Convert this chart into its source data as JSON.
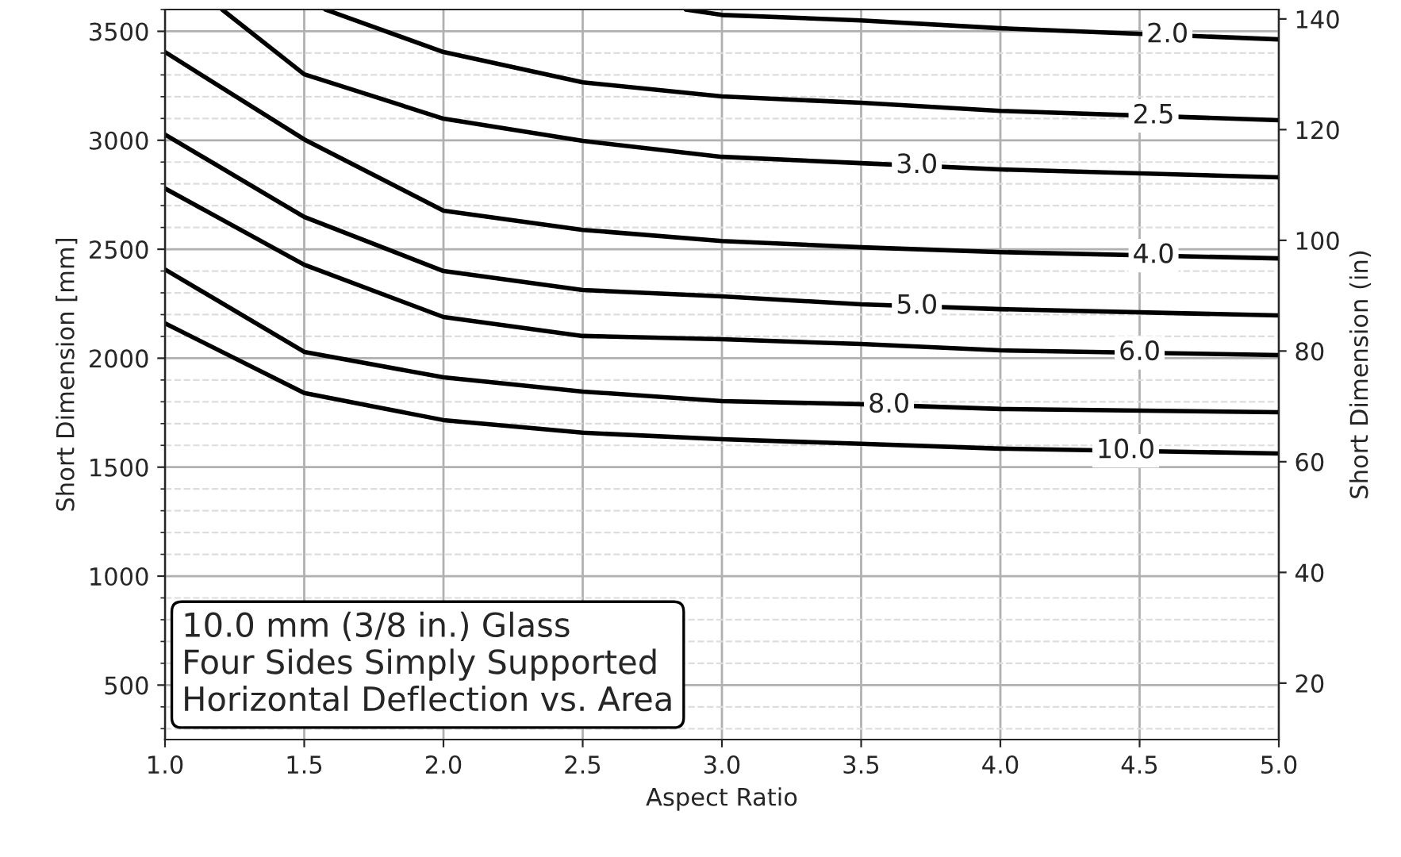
{
  "chart_data": {
    "type": "line",
    "xlabel": "Aspect Ratio",
    "ylabel": "Short Dimension [mm]",
    "y2label": "Short Dimension (in)",
    "xlim": [
      1.0,
      5.0
    ],
    "xticks": [
      {
        "value": 1.0,
        "label": "1.0"
      },
      {
        "value": 1.5,
        "label": "1.5"
      },
      {
        "value": 2.0,
        "label": "2.0"
      },
      {
        "value": 2.5,
        "label": "2.5"
      },
      {
        "value": 3.0,
        "label": "3.0"
      },
      {
        "value": 3.5,
        "label": "3.5"
      },
      {
        "value": 4.0,
        "label": "4.0"
      },
      {
        "value": 4.5,
        "label": "4.5"
      },
      {
        "value": 5.0,
        "label": "5.0"
      }
    ],
    "ylim": [
      250,
      3600
    ],
    "yticks": [
      500,
      1000,
      1500,
      2000,
      2500,
      3000,
      3500
    ],
    "y2lim": [
      9.8,
      141.7
    ],
    "y2ticks": [
      20,
      40,
      60,
      80,
      100,
      120,
      140
    ],
    "grid": true,
    "legend": false,
    "marker": "none",
    "line_style": "solid",
    "annotations": [
      "10.0 mm (3/8 in.) Glass\nFour Sides Simply Supported\nHorizontal Deflection vs. Area"
    ],
    "series": [
      {
        "name": "2.0",
        "color": "#000000",
        "x": [
          2.87,
          3.0,
          3.5,
          4.0,
          5.0
        ],
        "values": [
          3600,
          3575,
          3550,
          3514,
          3463
        ]
      },
      {
        "name": "2.5",
        "color": "#000000",
        "x": [
          1.575,
          2.0,
          2.5,
          3.0,
          3.5,
          4.0,
          5.0
        ],
        "values": [
          3600,
          3405,
          3266,
          3201,
          3172,
          3135,
          3092
        ]
      },
      {
        "name": "3.0",
        "color": "#000000",
        "x": [
          1.205,
          1.5,
          2.0,
          2.5,
          3.0,
          3.5,
          4.0,
          5.0
        ],
        "values": [
          3600,
          3303,
          3099,
          2997,
          2924,
          2895,
          2866,
          2830
        ]
      },
      {
        "name": "4.0",
        "color": "#000000",
        "x": [
          1.0,
          1.5,
          2.0,
          2.5,
          3.0,
          3.5,
          4.0,
          5.0
        ],
        "values": [
          3405,
          3004,
          2677,
          2589,
          2538,
          2509,
          2487,
          2458
        ]
      },
      {
        "name": "5.0",
        "color": "#000000",
        "x": [
          1.0,
          1.5,
          2.0,
          2.5,
          3.0,
          3.5,
          4.0,
          5.0
        ],
        "values": [
          3026,
          2648,
          2400,
          2313,
          2284,
          2247,
          2225,
          2196
        ]
      },
      {
        "name": "6.0",
        "color": "#000000",
        "x": [
          1.0,
          1.5,
          2.0,
          2.5,
          3.0,
          3.5,
          4.0,
          5.0
        ],
        "values": [
          2779,
          2429,
          2189,
          2102,
          2087,
          2065,
          2036,
          2014
        ]
      },
      {
        "name": "8.0",
        "color": "#000000",
        "x": [
          1.0,
          1.5,
          2.0,
          2.5,
          3.0,
          3.5,
          4.0,
          5.0
        ],
        "values": [
          2407,
          2029,
          1912,
          1847,
          1803,
          1789,
          1767,
          1752
        ]
      },
      {
        "name": "10.0",
        "color": "#000000",
        "x": [
          1.0,
          1.5,
          2.0,
          2.5,
          3.0,
          3.5,
          4.0,
          5.0
        ],
        "values": [
          2160,
          1840,
          1716,
          1658,
          1628,
          1607,
          1585,
          1563
        ]
      }
    ]
  }
}
